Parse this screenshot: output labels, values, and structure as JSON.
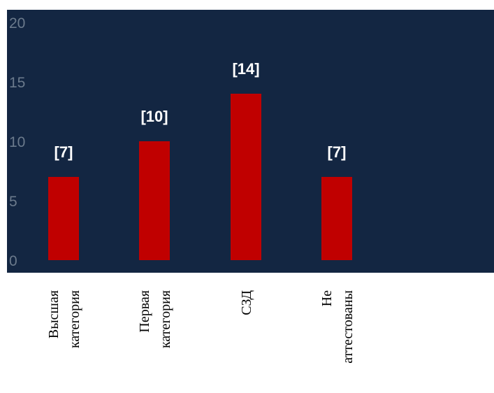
{
  "chart_data": {
    "type": "bar",
    "categories": [
      [
        "Высшая",
        "категория"
      ],
      [
        "Первая",
        "категория"
      ],
      [
        "СЗД"
      ],
      [
        "Не",
        "аттестованы"
      ]
    ],
    "values": [
      7,
      10,
      14,
      7
    ],
    "data_labels": [
      "[7]",
      "[10]",
      "[14]",
      "[7]"
    ],
    "yticks": [
      "0",
      "5",
      "10",
      "15",
      "20"
    ],
    "ylim": [
      0,
      20
    ],
    "bar_color": "#c00000",
    "background_color": "#132642",
    "grid": false,
    "legend": "none"
  }
}
